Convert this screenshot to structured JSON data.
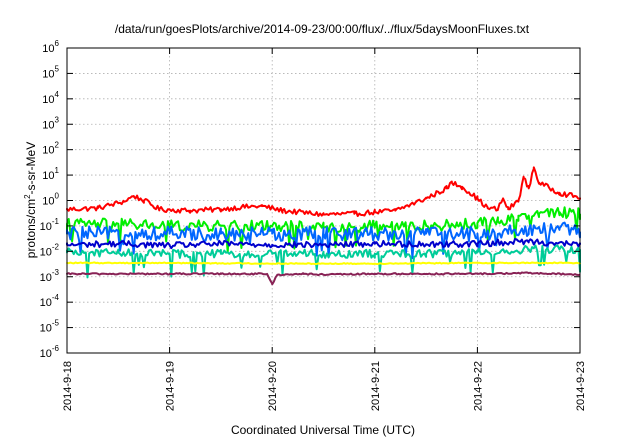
{
  "chart_data": {
    "type": "line",
    "title": "/data/run/goesPlots/archive/2014-09-23/00:00/flux/../flux/5daysMoonFluxes.txt",
    "xlabel": "Coordinated Universal Time (UTC)",
    "ylabel": "protons/cm²-s-sr-MeV",
    "ylabel_parts": [
      "protons/cm",
      "2",
      "-s-sr-MeV"
    ],
    "y_scale": "log",
    "ylim_exponents": [
      -6,
      6
    ],
    "y_tick_labels": [
      {
        "base": "10",
        "exp": "6"
      },
      {
        "base": "10",
        "exp": "5"
      },
      {
        "base": "10",
        "exp": "4"
      },
      {
        "base": "10",
        "exp": "3"
      },
      {
        "base": "10",
        "exp": "2"
      },
      {
        "base": "10",
        "exp": "1"
      },
      {
        "base": "10",
        "exp": "0"
      },
      {
        "base": "10",
        "exp": "-1"
      },
      {
        "base": "10",
        "exp": "-2"
      },
      {
        "base": "10",
        "exp": "-3"
      },
      {
        "base": "10",
        "exp": "-4"
      },
      {
        "base": "10",
        "exp": "-5"
      },
      {
        "base": "10",
        "exp": "-6"
      }
    ],
    "x_tick_labels": [
      "2014-9-18",
      "2014-9-19",
      "2014-9-20",
      "2014-9-21",
      "2014-9-22",
      "2014-9-23"
    ],
    "x_range_days": [
      0,
      5
    ],
    "grid": true,
    "series_colors": [
      "#ff0000",
      "#00ee00",
      "#0066ff",
      "#00cc99",
      "#0000cc",
      "#ffff00",
      "#882255"
    ],
    "series": [
      {
        "color": "#ff0000",
        "points": [
          [
            0.0,
            0.45
          ],
          [
            0.3,
            0.5
          ],
          [
            0.55,
            0.9
          ],
          [
            0.65,
            1.5
          ],
          [
            0.75,
            1.0
          ],
          [
            0.9,
            0.45
          ],
          [
            1.2,
            0.4
          ],
          [
            1.5,
            0.45
          ],
          [
            1.7,
            0.55
          ],
          [
            1.9,
            0.6
          ],
          [
            2.1,
            0.4
          ],
          [
            2.5,
            0.28
          ],
          [
            2.8,
            0.3
          ],
          [
            3.0,
            0.35
          ],
          [
            3.2,
            0.4
          ],
          [
            3.5,
            1.2
          ],
          [
            3.7,
            3.0
          ],
          [
            3.75,
            5.0
          ],
          [
            3.85,
            3.5
          ],
          [
            4.0,
            1.2
          ],
          [
            4.1,
            0.5
          ],
          [
            4.2,
            0.45
          ],
          [
            4.25,
            1.2
          ],
          [
            4.3,
            0.45
          ],
          [
            4.4,
            1.0
          ],
          [
            4.45,
            8.0
          ],
          [
            4.5,
            3.0
          ],
          [
            4.55,
            20.0
          ],
          [
            4.6,
            5.0
          ],
          [
            4.8,
            2.0
          ],
          [
            5.0,
            1.3
          ]
        ]
      },
      {
        "color": "#00ee00",
        "points": [
          [
            0.0,
            0.12
          ],
          [
            0.5,
            0.12
          ],
          [
            1.0,
            0.1
          ],
          [
            1.5,
            0.1
          ],
          [
            2.0,
            0.1
          ],
          [
            2.5,
            0.09
          ],
          [
            3.0,
            0.1
          ],
          [
            3.5,
            0.1
          ],
          [
            3.8,
            0.11
          ],
          [
            4.0,
            0.13
          ],
          [
            4.2,
            0.15
          ],
          [
            4.4,
            0.25
          ],
          [
            4.6,
            0.3
          ],
          [
            4.8,
            0.35
          ],
          [
            5.0,
            0.3
          ]
        ]
      },
      {
        "color": "#0066ff",
        "points": [
          [
            0.0,
            0.05
          ],
          [
            0.5,
            0.05
          ],
          [
            1.0,
            0.05
          ],
          [
            1.5,
            0.05
          ],
          [
            2.0,
            0.05
          ],
          [
            2.5,
            0.05
          ],
          [
            3.0,
            0.05
          ],
          [
            3.5,
            0.05
          ],
          [
            4.0,
            0.05
          ],
          [
            4.3,
            0.06
          ],
          [
            4.5,
            0.07
          ],
          [
            4.8,
            0.08
          ],
          [
            5.0,
            0.06
          ]
        ]
      },
      {
        "color": "#00cc99",
        "points": [
          [
            0.0,
            0.009
          ],
          [
            0.5,
            0.009
          ],
          [
            1.0,
            0.008
          ],
          [
            1.5,
            0.008
          ],
          [
            2.0,
            0.008
          ],
          [
            2.5,
            0.008
          ],
          [
            3.0,
            0.008
          ],
          [
            3.5,
            0.008
          ],
          [
            4.0,
            0.009
          ],
          [
            4.5,
            0.012
          ],
          [
            5.0,
            0.012
          ]
        ]
      },
      {
        "color": "#0000cc",
        "points": [
          [
            0.0,
            0.018
          ],
          [
            0.5,
            0.02
          ],
          [
            1.0,
            0.017
          ],
          [
            1.5,
            0.02
          ],
          [
            2.0,
            0.018
          ],
          [
            2.5,
            0.018
          ],
          [
            3.0,
            0.02
          ],
          [
            3.5,
            0.019
          ],
          [
            4.0,
            0.02
          ],
          [
            4.5,
            0.025
          ],
          [
            5.0,
            0.018
          ]
        ]
      },
      {
        "color": "#ffff00",
        "points": [
          [
            0.0,
            0.0035
          ],
          [
            1.0,
            0.0035
          ],
          [
            2.0,
            0.0033
          ],
          [
            3.0,
            0.0033
          ],
          [
            4.0,
            0.0035
          ],
          [
            5.0,
            0.0035
          ]
        ]
      },
      {
        "color": "#882255",
        "points": [
          [
            0.0,
            0.0013
          ],
          [
            0.5,
            0.0013
          ],
          [
            1.0,
            0.0013
          ],
          [
            1.5,
            0.0013
          ],
          [
            1.95,
            0.0013
          ],
          [
            2.0,
            0.0005
          ],
          [
            2.05,
            0.0012
          ],
          [
            2.3,
            0.0013
          ],
          [
            2.5,
            0.0012
          ],
          [
            3.0,
            0.0013
          ],
          [
            3.5,
            0.0013
          ],
          [
            4.0,
            0.0013
          ],
          [
            4.5,
            0.0014
          ],
          [
            5.0,
            0.0012
          ]
        ]
      }
    ]
  }
}
